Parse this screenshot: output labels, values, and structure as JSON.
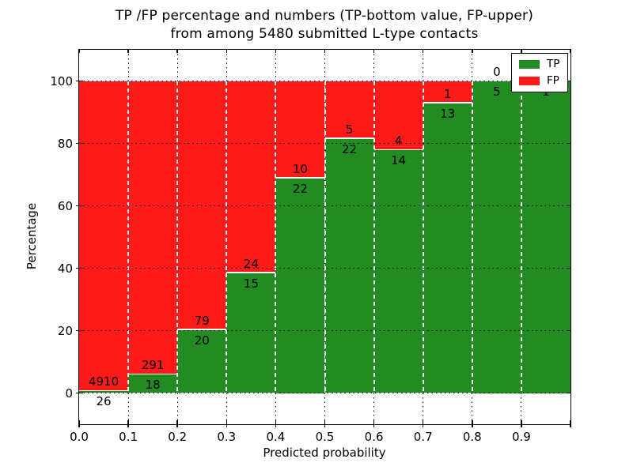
{
  "title": {
    "line1": "TP /FP percentage and numbers (TP-bottom value, FP-upper)",
    "line2": "from among 5480 submitted L-type contacts"
  },
  "axes": {
    "xlabel": "Predicted probability",
    "ylabel": "Percentage"
  },
  "legend": {
    "position": "upper right",
    "items": [
      {
        "label": "TP",
        "color": "#228b22"
      },
      {
        "label": "FP",
        "color": "#ff1a1a"
      }
    ]
  },
  "colors": {
    "tp": "#228b22",
    "fp": "#ff1a1a",
    "background": "#ffffff",
    "grid": "#000000"
  },
  "chart_data": {
    "type": "bar",
    "subtype": "stacked-100-percent",
    "title": "TP /FP percentage and numbers (TP-bottom value, FP-upper) from among 5480 submitted L-type contacts",
    "xlabel": "Predicted probability",
    "ylabel": "Percentage",
    "total_submitted": 5480,
    "bin_width": 0.1,
    "bin_starts": [
      0.0,
      0.1,
      0.2,
      0.3,
      0.4,
      0.5,
      0.6,
      0.7,
      0.8,
      0.9
    ],
    "series": [
      {
        "name": "TP",
        "color": "#228b22",
        "values": [
          26,
          18,
          20,
          15,
          22,
          22,
          14,
          13,
          5,
          1
        ]
      },
      {
        "name": "FP",
        "color": "#ff1a1a",
        "values": [
          4910,
          291,
          79,
          24,
          10,
          5,
          4,
          1,
          0,
          0
        ]
      }
    ],
    "tp_percentages": [
      0.53,
      5.83,
      20.2,
      38.46,
      68.75,
      81.48,
      77.78,
      92.86,
      100.0,
      100.0
    ],
    "xlim": [
      0.0,
      1.0
    ],
    "ylim": [
      -10,
      110
    ],
    "xticks": [
      "0.0",
      "0.1",
      "0.2",
      "0.3",
      "0.4",
      "0.5",
      "0.6",
      "0.7",
      "0.8",
      "0.9"
    ],
    "yticks": [
      0,
      20,
      40,
      60,
      80,
      100
    ],
    "grid": true,
    "legend_position": "upper right"
  }
}
